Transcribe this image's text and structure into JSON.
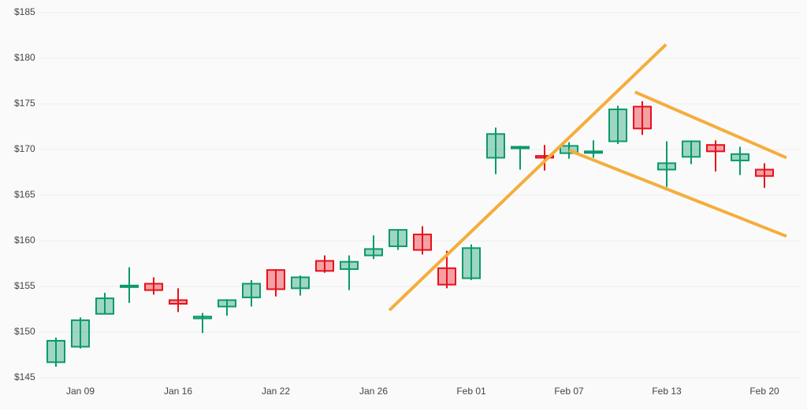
{
  "chart_data": {
    "type": "candlestick",
    "categories": [
      null,
      "Jan 09",
      null,
      null,
      null,
      "Jan 16",
      null,
      null,
      null,
      "Jan 22",
      null,
      null,
      null,
      "Jan 26",
      null,
      null,
      null,
      "Feb 01",
      null,
      null,
      null,
      "Feb 07",
      null,
      null,
      null,
      "Feb 13",
      null,
      null,
      null,
      "Feb 20"
    ],
    "open": [
      146.7,
      148.4,
      152.0,
      155.0,
      155.3,
      153.5,
      151.5,
      152.8,
      153.8,
      156.8,
      154.8,
      157.8,
      156.9,
      158.4,
      159.4,
      160.7,
      157.0,
      155.9,
      169.1,
      170.2,
      169.3,
      169.6,
      169.7,
      170.9,
      174.7,
      167.8,
      169.2,
      170.5,
      168.8,
      167.8
    ],
    "high": [
      149.4,
      151.6,
      154.3,
      157.1,
      156.0,
      154.8,
      152.1,
      153.6,
      155.7,
      156.9,
      156.2,
      158.4,
      158.4,
      160.6,
      161.2,
      161.6,
      158.9,
      159.6,
      172.4,
      170.4,
      170.5,
      170.8,
      171.0,
      174.8,
      175.3,
      170.9,
      171.0,
      171.0,
      170.3,
      168.5
    ],
    "low": [
      146.2,
      148.2,
      152.0,
      153.2,
      154.1,
      152.2,
      149.9,
      151.8,
      152.8,
      153.9,
      154.0,
      156.5,
      154.6,
      158.0,
      159.0,
      158.5,
      154.8,
      155.7,
      167.3,
      167.8,
      167.7,
      169.0,
      169.1,
      170.6,
      171.6,
      165.9,
      168.4,
      167.6,
      167.2,
      165.8
    ],
    "close": [
      149.05,
      151.3,
      153.7,
      155.1,
      154.6,
      153.1,
      151.7,
      153.5,
      155.3,
      154.7,
      156.0,
      156.7,
      157.7,
      159.1,
      161.2,
      159.0,
      155.2,
      159.2,
      171.7,
      170.3,
      169.1,
      170.4,
      169.8,
      174.4,
      172.3,
      168.5,
      170.9,
      169.8,
      169.5,
      167.1
    ],
    "up_color": "#0a9a6a",
    "down_color": "#e8101a",
    "ylim": [
      145,
      185
    ],
    "yticks": [
      {
        "value": 145,
        "label": "$145"
      },
      {
        "value": 150,
        "label": "$150"
      },
      {
        "value": 155,
        "label": "$155"
      },
      {
        "value": 160,
        "label": "$160"
      },
      {
        "value": 165,
        "label": "$165"
      },
      {
        "value": 170,
        "label": "$170"
      },
      {
        "value": 175,
        "label": "$175"
      },
      {
        "value": 180,
        "label": "$180"
      },
      {
        "value": 185,
        "label": "$185"
      }
    ],
    "grid": true,
    "trend_lines": [
      {
        "x": [
          13.65,
          24.97
        ],
        "y": [
          152.4,
          181.5
        ]
      },
      {
        "x": [
          21.0,
          29.9
        ],
        "y": [
          169.9,
          160.5
        ]
      },
      {
        "x": [
          23.7,
          29.9
        ],
        "y": [
          176.3,
          169.1
        ]
      }
    ],
    "trend_color": "#f5ad3c"
  }
}
